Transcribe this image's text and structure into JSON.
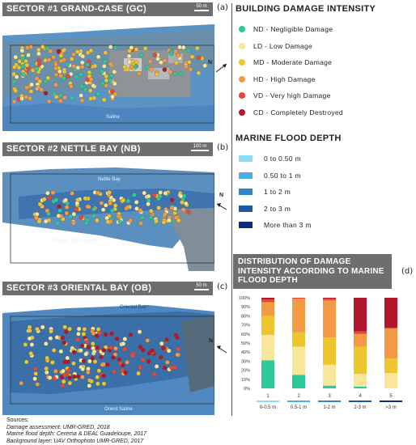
{
  "sectors": [
    {
      "title": "SECTOR #1 GRAND-CASE (GC)",
      "panel": "(a)",
      "scale": "50 m",
      "labels": [
        "Grand-Case Bay",
        "Saline"
      ]
    },
    {
      "title": "SECTOR #2 NETTLE BAY (NB)",
      "panel": "(b)",
      "scale": "100 m",
      "labels": [
        "Nettle Bay",
        "Simpson Bay Lagoon"
      ]
    },
    {
      "title": "SECTOR #3 ORIENTAL BAY (OB)",
      "panel": "(c)",
      "scale": "50 m",
      "labels": [
        "Oriental Bay",
        "Orient Saline"
      ]
    }
  ],
  "north_label": "N",
  "legend_damage": {
    "title": "BUILDING DAMAGE INTENSITY",
    "items": [
      {
        "label": "ND - Negligible Damage",
        "color": "#2ec99a"
      },
      {
        "label": "LD - Low Damage",
        "color": "#f8e79a"
      },
      {
        "label": "MD - Moderate Damage",
        "color": "#edc52c"
      },
      {
        "label": "HD - High Damage",
        "color": "#f49a45"
      },
      {
        "label": "VD - Very high Damage",
        "color": "#e8473a"
      },
      {
        "label": "CD - Completely Destroyed",
        "color": "#b1172c"
      }
    ]
  },
  "legend_flood": {
    "title": "MARINE FLOOD DEPTH",
    "items": [
      {
        "label": "0 to 0.50 m",
        "color": "#8fdcf5"
      },
      {
        "label": "0.50 to 1 m",
        "color": "#4aaee0"
      },
      {
        "label": "1 to 2 m",
        "color": "#2e84c6"
      },
      {
        "label": "2 to 3 m",
        "color": "#1b5aa3"
      },
      {
        "label": "More than 3 m",
        "color": "#0e2d7a"
      }
    ]
  },
  "distribution": {
    "title": "DISTRIBUTION OF DAMAGE INTENSITY ACCORDING TO MARINE FLOOD DEPTH",
    "panel": "(d)"
  },
  "chart_data": {
    "type": "bar",
    "stacked": true,
    "categories": [
      "1",
      "2",
      "3",
      "4",
      "5"
    ],
    "category_sublabels": [
      "0-0.5 m",
      "0.5-1 m",
      "1-2 m",
      "2-3 m",
      ">3 m"
    ],
    "ylim": [
      0,
      100
    ],
    "yticks": [
      "0%",
      "10%",
      "20%",
      "30%",
      "40%",
      "50%",
      "60%",
      "70%",
      "80%",
      "90%",
      "100%"
    ],
    "series": [
      {
        "name": "ND",
        "color": "#2ec99a",
        "values": [
          31,
          15,
          3,
          2,
          0
        ]
      },
      {
        "name": "LD",
        "color": "#f8e79a",
        "values": [
          28,
          31,
          23,
          14,
          17
        ]
      },
      {
        "name": "MD",
        "color": "#edc52c",
        "values": [
          21,
          16,
          30,
          30,
          16
        ]
      },
      {
        "name": "HD",
        "color": "#f49a45",
        "values": [
          15,
          37,
          41,
          14,
          33
        ]
      },
      {
        "name": "VD",
        "color": "#e8473a",
        "values": [
          3,
          1,
          2,
          3,
          1
        ]
      },
      {
        "name": "CD",
        "color": "#b1172c",
        "values": [
          2,
          0,
          1,
          37,
          33
        ]
      }
    ],
    "sublabel_colors": [
      "#8fdcf5",
      "#4aaee0",
      "#2e84c6",
      "#1b5aa3",
      "#0e2d7a"
    ]
  },
  "sources": {
    "heading": "Sources:",
    "lines": [
      "Damage assessment: UMR-GRED, 2018",
      "Marine flood depth: Cerema & DEAL Guadeloupe, 2017",
      "Background layer: UAV Orthophoto UMR-GRED, 2017"
    ]
  }
}
